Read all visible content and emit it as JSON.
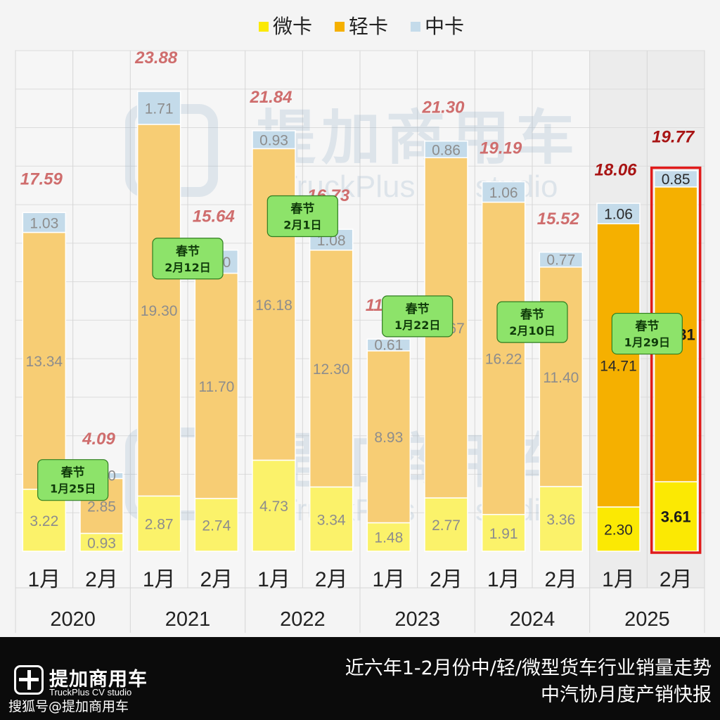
{
  "chart_data": {
    "type": "bar",
    "stacked": true,
    "legend": {
      "position": "top-center"
    },
    "series": [
      {
        "name": "微卡",
        "color": "#fbf26a",
        "values": [
          3.22,
          0.93,
          2.87,
          2.74,
          4.73,
          3.34,
          1.48,
          2.77,
          1.91,
          3.36,
          2.3,
          3.61
        ]
      },
      {
        "name": "轻卡",
        "color": "#f7cd74",
        "values": [
          13.34,
          2.85,
          19.3,
          11.7,
          16.18,
          12.3,
          8.93,
          17.67,
          16.22,
          11.4,
          14.71,
          15.31
        ]
      },
      {
        "name": "中卡",
        "color": "#c4dbea",
        "values": [
          1.03,
          0.3,
          1.71,
          1.2,
          0.93,
          1.08,
          0.61,
          0.86,
          1.06,
          0.77,
          1.06,
          0.85
        ]
      }
    ],
    "highlight_colors": {
      "微卡": "#fbe903",
      "轻卡": "#f5b000",
      "中卡": "#c4dbea"
    },
    "label_values": [
      "3.22",
      "0.93",
      "2.87",
      "2.74",
      "4.73",
      "3.34",
      "1.48",
      "2.77",
      "1.91",
      "3.36",
      "2.30",
      "3.61",
      "13.34",
      "2.85",
      "19.30",
      "11.70",
      "16.18",
      "12.30",
      "8.93",
      "17.67",
      "16.22",
      "11.40",
      "14.71",
      "15.31",
      "1.03",
      "0.30",
      "1.71",
      "1.20",
      "0.93",
      "1.08",
      "0.61",
      "0.86",
      "1.06",
      "0.77",
      "1.06",
      "0.85"
    ],
    "totals": [
      17.59,
      4.09,
      23.88,
      15.64,
      21.84,
      16.73,
      11.02,
      21.3,
      19.19,
      15.52,
      18.06,
      19.77
    ],
    "total_labels": [
      "17.59",
      "4.09",
      "23.88",
      "15.64",
      "21.84",
      "16.73",
      "11.02",
      "21.30",
      "19.19",
      "15.52",
      "18.06",
      "19.77"
    ],
    "months": [
      "1月",
      "2月",
      "1月",
      "2月",
      "1月",
      "2月",
      "1月",
      "2月",
      "1月",
      "2月",
      "1月",
      "2月"
    ],
    "years": [
      "2020",
      "2021",
      "2022",
      "2023",
      "2024",
      "2025"
    ],
    "ylim": [
      0,
      26
    ],
    "grid": true,
    "highlight_bars": [
      10,
      11
    ],
    "outlined_bar": 11,
    "annotations": [
      {
        "bar": 0,
        "title": "春节",
        "date": "1月25日",
        "at": 3.7
      },
      {
        "bar": 2,
        "title": "春节",
        "date": "2月12日",
        "at": 15.2
      },
      {
        "bar": 4,
        "title": "春节",
        "date": "2月1日",
        "at": 17.4
      },
      {
        "bar": 6,
        "title": "春节",
        "date": "1月22日",
        "at": 12.2
      },
      {
        "bar": 8,
        "title": "春节",
        "date": "2月10日",
        "at": 11.9
      },
      {
        "bar": 10,
        "title": "春节",
        "date": "1月29日",
        "at": 11.3
      }
    ]
  },
  "watermark": {
    "cn": "提加商用车",
    "en": "TruckPlus CV studio"
  },
  "footer": {
    "logo_cn": "提加商用车",
    "logo_en": "TruckPlus CV studio",
    "source": "搜狐号@提加商用车",
    "caption_line1": "近六年1-2月份中/轻/微型货车行业销量走势",
    "caption_line2": "中汽协月度产销快报"
  }
}
